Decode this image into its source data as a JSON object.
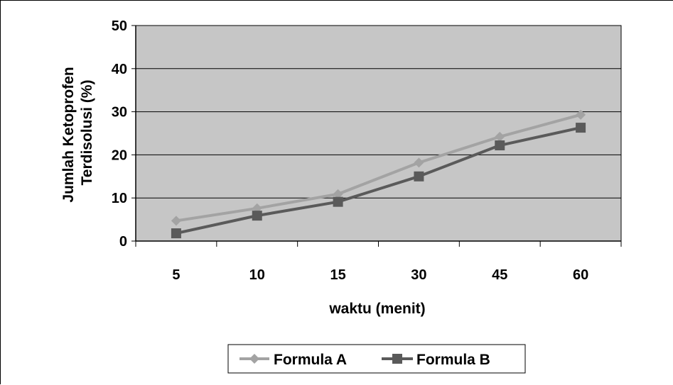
{
  "chart_data": {
    "type": "line",
    "title": "",
    "xlabel": "waktu (menit)",
    "ylabel": [
      "Jumlah Ketoprofen",
      "Terdisolusi (%)"
    ],
    "categories": [
      "5",
      "10",
      "15",
      "30",
      "45",
      "60"
    ],
    "ylim": [
      0,
      50
    ],
    "yticks": [
      0,
      10,
      20,
      30,
      40,
      50
    ],
    "grid": true,
    "legend_position": "bottom",
    "plot_background": "#c6c6c6",
    "series": [
      {
        "name": "Formula A",
        "values": [
          4.7,
          7.6,
          10.9,
          18.2,
          24.2,
          29.3
        ],
        "color": "#a3a3a3",
        "marker": "diamond"
      },
      {
        "name": "Formula B",
        "values": [
          1.8,
          5.9,
          9.1,
          15.0,
          22.2,
          26.3
        ],
        "color": "#5a5a5a",
        "marker": "square"
      }
    ]
  }
}
